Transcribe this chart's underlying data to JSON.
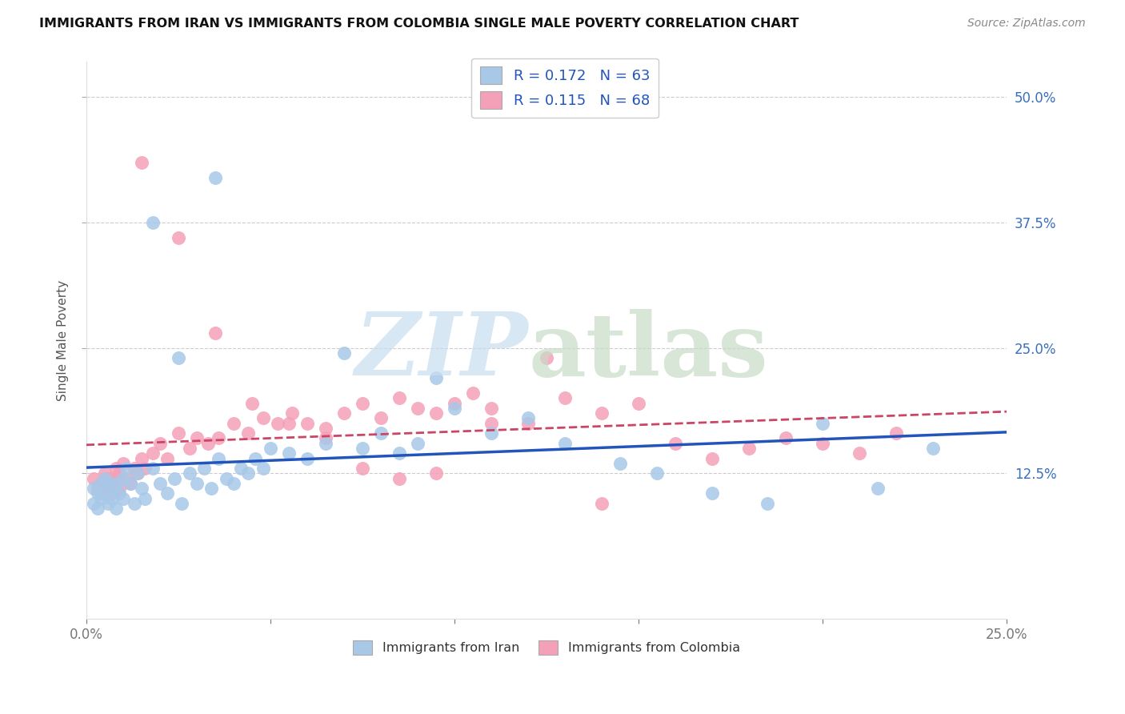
{
  "title": "IMMIGRANTS FROM IRAN VS IMMIGRANTS FROM COLOMBIA SINGLE MALE POVERTY CORRELATION CHART",
  "source": "Source: ZipAtlas.com",
  "ylabel": "Single Male Poverty",
  "ytick_labels": [
    "12.5%",
    "25.0%",
    "37.5%",
    "50.0%"
  ],
  "ytick_values": [
    0.125,
    0.25,
    0.375,
    0.5
  ],
  "xlim": [
    0.0,
    0.25
  ],
  "ylim": [
    -0.02,
    0.535
  ],
  "iran_color": "#a8c8e8",
  "colombia_color": "#f4a0b8",
  "iran_line_color": "#2255bb",
  "colombia_line_color": "#cc4466",
  "legend_iran_r": "R = 0.172",
  "legend_iran_n": "N = 63",
  "legend_colombia_r": "R = 0.115",
  "legend_colombia_n": "N = 68",
  "iran_scatter_x": [
    0.002,
    0.002,
    0.003,
    0.003,
    0.004,
    0.004,
    0.005,
    0.005,
    0.006,
    0.006,
    0.007,
    0.007,
    0.008,
    0.008,
    0.009,
    0.01,
    0.01,
    0.011,
    0.012,
    0.013,
    0.014,
    0.015,
    0.016,
    0.018,
    0.02,
    0.022,
    0.024,
    0.026,
    0.028,
    0.03,
    0.032,
    0.034,
    0.036,
    0.038,
    0.04,
    0.042,
    0.044,
    0.046,
    0.048,
    0.05,
    0.055,
    0.06,
    0.065,
    0.07,
    0.075,
    0.08,
    0.085,
    0.09,
    0.095,
    0.1,
    0.11,
    0.12,
    0.13,
    0.145,
    0.155,
    0.17,
    0.185,
    0.2,
    0.215,
    0.23,
    0.018,
    0.025,
    0.035
  ],
  "iran_scatter_y": [
    0.11,
    0.095,
    0.105,
    0.09,
    0.1,
    0.115,
    0.105,
    0.12,
    0.095,
    0.115,
    0.11,
    0.1,
    0.115,
    0.09,
    0.105,
    0.12,
    0.1,
    0.13,
    0.115,
    0.095,
    0.125,
    0.11,
    0.1,
    0.13,
    0.115,
    0.105,
    0.12,
    0.095,
    0.125,
    0.115,
    0.13,
    0.11,
    0.14,
    0.12,
    0.115,
    0.13,
    0.125,
    0.14,
    0.13,
    0.15,
    0.145,
    0.14,
    0.155,
    0.245,
    0.15,
    0.165,
    0.145,
    0.155,
    0.22,
    0.19,
    0.165,
    0.18,
    0.155,
    0.135,
    0.125,
    0.105,
    0.095,
    0.175,
    0.11,
    0.15,
    0.375,
    0.24,
    0.42
  ],
  "colombia_scatter_x": [
    0.002,
    0.003,
    0.004,
    0.004,
    0.005,
    0.005,
    0.006,
    0.006,
    0.007,
    0.007,
    0.008,
    0.008,
    0.009,
    0.009,
    0.01,
    0.011,
    0.012,
    0.013,
    0.014,
    0.015,
    0.016,
    0.018,
    0.02,
    0.022,
    0.025,
    0.028,
    0.03,
    0.033,
    0.036,
    0.04,
    0.044,
    0.048,
    0.052,
    0.056,
    0.06,
    0.065,
    0.07,
    0.075,
    0.08,
    0.085,
    0.09,
    0.095,
    0.1,
    0.105,
    0.11,
    0.12,
    0.13,
    0.14,
    0.15,
    0.16,
    0.17,
    0.18,
    0.19,
    0.2,
    0.21,
    0.22,
    0.015,
    0.025,
    0.035,
    0.045,
    0.055,
    0.065,
    0.075,
    0.085,
    0.095,
    0.11,
    0.125,
    0.14
  ],
  "colombia_scatter_y": [
    0.12,
    0.11,
    0.115,
    0.105,
    0.125,
    0.115,
    0.11,
    0.12,
    0.115,
    0.105,
    0.12,
    0.13,
    0.11,
    0.125,
    0.135,
    0.12,
    0.115,
    0.13,
    0.125,
    0.14,
    0.13,
    0.145,
    0.155,
    0.14,
    0.165,
    0.15,
    0.16,
    0.155,
    0.16,
    0.175,
    0.165,
    0.18,
    0.175,
    0.185,
    0.175,
    0.17,
    0.185,
    0.195,
    0.18,
    0.2,
    0.19,
    0.185,
    0.195,
    0.205,
    0.19,
    0.175,
    0.2,
    0.185,
    0.195,
    0.155,
    0.14,
    0.15,
    0.16,
    0.155,
    0.145,
    0.165,
    0.435,
    0.36,
    0.265,
    0.195,
    0.175,
    0.16,
    0.13,
    0.12,
    0.125,
    0.175,
    0.24,
    0.095
  ]
}
